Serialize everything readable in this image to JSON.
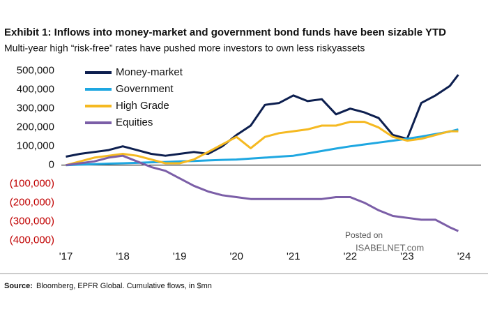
{
  "chart_data": {
    "type": "line",
    "title": "Exhibit 1: Inflows into money-market and government bond funds have been sizable YTD",
    "subtitle": "Multi-year high “risk-free” rates have pushed more investors to own less riskyassets",
    "source_label": "Source:",
    "source": "Bloomberg, EPFR Global. Cumulative flows, in $mn",
    "watermark": [
      "Posted on",
      "ISABELNET.com"
    ],
    "x": [
      2017,
      2017.25,
      2017.5,
      2017.75,
      2018,
      2018.25,
      2018.5,
      2018.75,
      2019,
      2019.25,
      2019.5,
      2019.75,
      2020,
      2020.25,
      2020.5,
      2020.75,
      2021,
      2021.25,
      2021.5,
      2021.75,
      2022,
      2022.25,
      2022.5,
      2022.75,
      2023,
      2023.25,
      2023.5,
      2023.75,
      2023.9
    ],
    "series": [
      {
        "name": "Money-market",
        "color": "#0d1f4f",
        "values": [
          45000,
          60000,
          70000,
          80000,
          100000,
          80000,
          60000,
          50000,
          60000,
          70000,
          60000,
          100000,
          160000,
          210000,
          320000,
          330000,
          370000,
          340000,
          350000,
          270000,
          300000,
          280000,
          250000,
          160000,
          140000,
          330000,
          370000,
          420000,
          480000
        ]
      },
      {
        "name": "Government",
        "color": "#1ea7e1",
        "values": [
          0,
          3000,
          5000,
          8000,
          10000,
          12000,
          15000,
          17000,
          20000,
          22000,
          25000,
          28000,
          30000,
          35000,
          40000,
          45000,
          50000,
          62000,
          75000,
          88000,
          100000,
          110000,
          120000,
          130000,
          140000,
          152000,
          165000,
          178000,
          190000
        ]
      },
      {
        "name": "High Grade",
        "color": "#f5b921",
        "values": [
          0,
          20000,
          40000,
          50000,
          60000,
          50000,
          30000,
          10000,
          10000,
          30000,
          70000,
          110000,
          150000,
          90000,
          150000,
          170000,
          180000,
          190000,
          210000,
          210000,
          230000,
          230000,
          200000,
          150000,
          130000,
          140000,
          160000,
          180000,
          180000
        ]
      },
      {
        "name": "Equities",
        "color": "#7b5ea7",
        "values": [
          0,
          10000,
          20000,
          40000,
          50000,
          20000,
          -10000,
          -30000,
          -70000,
          -110000,
          -140000,
          -160000,
          -170000,
          -180000,
          -180000,
          -180000,
          -180000,
          -180000,
          -180000,
          -170000,
          -170000,
          -200000,
          -240000,
          -270000,
          -280000,
          -290000,
          -290000,
          -330000,
          -350000
        ]
      }
    ],
    "xlim": [
      2016.92,
      2024.3
    ],
    "xticks": [
      {
        "value": 2017,
        "label": "'17"
      },
      {
        "value": 2018,
        "label": "'18"
      },
      {
        "value": 2019,
        "label": "'19"
      },
      {
        "value": 2020,
        "label": "'20"
      },
      {
        "value": 2021,
        "label": "'21"
      },
      {
        "value": 2022,
        "label": "'22"
      },
      {
        "value": 2023,
        "label": "'23"
      },
      {
        "value": 2024,
        "label": "'24"
      }
    ],
    "ylim": [
      -420000,
      525000
    ],
    "yticks": [
      {
        "value": 500000,
        "label": "500,000"
      },
      {
        "value": 400000,
        "label": "400,000"
      },
      {
        "value": 300000,
        "label": "300,000"
      },
      {
        "value": 200000,
        "label": "200,000"
      },
      {
        "value": 100000,
        "label": "100,000"
      },
      0,
      {
        "value": -100000,
        "label": "(100,000)"
      },
      {
        "value": -200000,
        "label": "(200,000)"
      },
      {
        "value": -300000,
        "label": "(300,000)"
      },
      {
        "value": -400000,
        "label": "(400,000)"
      }
    ],
    "negative_label_color": "#c00000",
    "legend": "upper left"
  }
}
